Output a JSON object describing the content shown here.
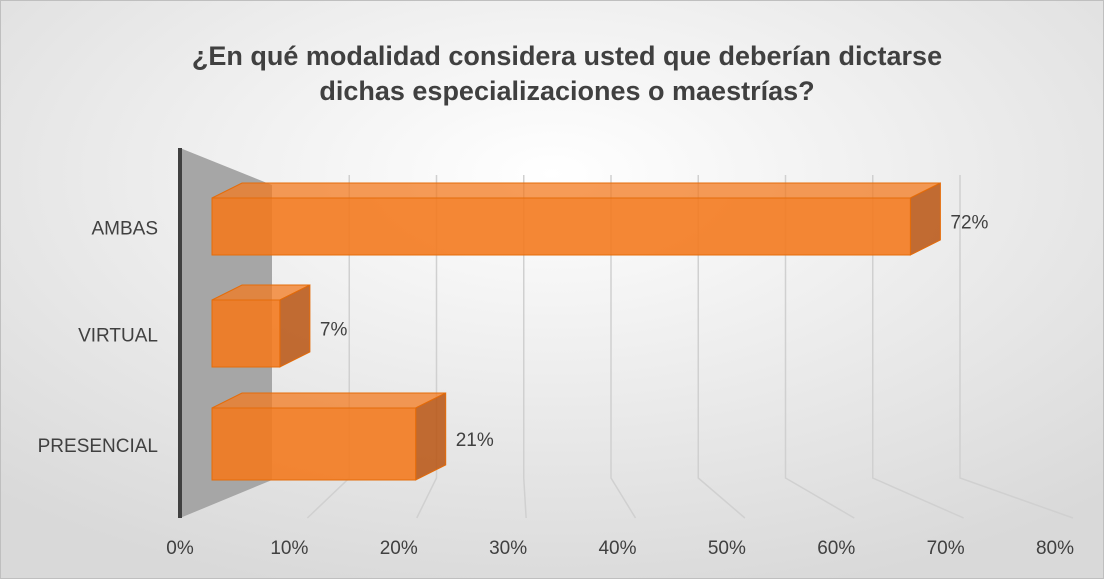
{
  "chart_data": {
    "type": "bar3d",
    "orientation": "horizontal",
    "title": "¿En qué modalidad considera usted que deberían dictarse dichas especializaciones o maestrías?",
    "categories": [
      "AMBAS",
      "VIRTUAL",
      "PRESENCIAL"
    ],
    "values": [
      72,
      7,
      21
    ],
    "value_labels": [
      "72%",
      "7%",
      "21%"
    ],
    "color": "#f37a1f",
    "xlim": [
      0,
      80
    ],
    "xticks": [
      {
        "value": 0,
        "label": "0%"
      },
      {
        "value": 10,
        "label": "10%"
      },
      {
        "value": 20,
        "label": "20%"
      },
      {
        "value": 30,
        "label": "30%"
      },
      {
        "value": 40,
        "label": "40%"
      },
      {
        "value": 50,
        "label": "50%"
      },
      {
        "value": 60,
        "label": "60%"
      },
      {
        "value": 70,
        "label": "70%"
      },
      {
        "value": 80,
        "label": "80%"
      }
    ],
    "grid": true
  }
}
